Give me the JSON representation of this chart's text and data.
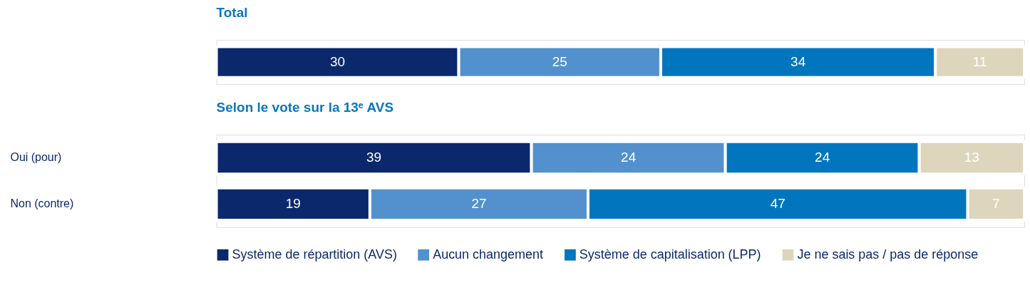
{
  "chart_data": [
    {
      "type": "bar",
      "orientation": "horizontal",
      "stacked": true,
      "data_labels": true,
      "title": "Total",
      "categories": [
        null
      ],
      "series": [
        {
          "color": "#0b286d",
          "values": [
            30
          ]
        },
        {
          "color": "#5291cd",
          "values": [
            25
          ]
        },
        {
          "color": "#0176be",
          "values": [
            34
          ]
        },
        {
          "color": "#ddd6bd",
          "values": [
            11
          ]
        }
      ]
    },
    {
      "type": "bar",
      "orientation": "horizontal",
      "stacked": true,
      "data_labels": true,
      "legend": "bottom",
      "title": "Selon le vote sur la 13ᵉ AVS",
      "categories": [
        "Oui (pour)",
        "Non (contre)"
      ],
      "series": [
        {
          "name": "Système de répartition (AVS)",
          "color": "#0b286d",
          "values": [
            39,
            19
          ]
        },
        {
          "name": "Aucun changement",
          "color": "#5291cd",
          "values": [
            24,
            27
          ]
        },
        {
          "name": "Système de capitalisation (LPP)",
          "color": "#0176be",
          "values": [
            24,
            47
          ]
        },
        {
          "name": "Je ne sais pas / pas de réponse",
          "color": "#ddd6bd",
          "values": [
            13,
            7
          ]
        }
      ]
    }
  ]
}
